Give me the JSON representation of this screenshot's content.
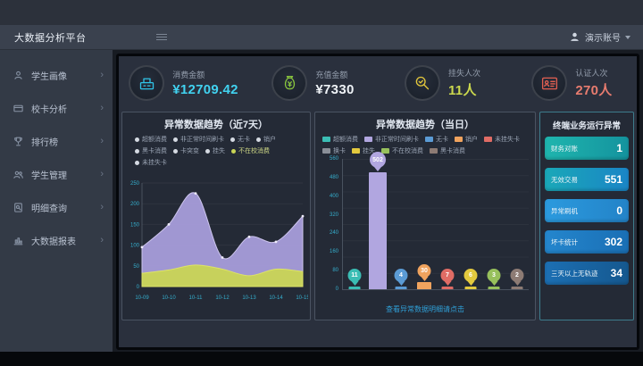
{
  "header": {
    "title": "大数据分析平台",
    "user_name": "演示账号"
  },
  "sidebar": {
    "items": [
      {
        "label": "学生画像",
        "icon": "student-icon"
      },
      {
        "label": "校卡分析",
        "icon": "card-icon"
      },
      {
        "label": "排行榜",
        "icon": "trophy-icon"
      },
      {
        "label": "学生管理",
        "icon": "users-icon"
      },
      {
        "label": "明细查询",
        "icon": "search-doc-icon"
      },
      {
        "label": "大数据报表",
        "icon": "report-icon"
      }
    ]
  },
  "kpis": [
    {
      "label": "消费金额",
      "value": "¥12709.42",
      "icon": "cash-register-icon",
      "icon_color": "#2fc3e6",
      "value_color": "#41d2f0"
    },
    {
      "label": "充值金额",
      "value": "¥7330",
      "icon": "money-bag-icon",
      "icon_color": "#8ac73e",
      "value_color": "#eef2f6"
    },
    {
      "label": "挂失人次",
      "value": "11人",
      "icon": "magnifier-hand-icon",
      "icon_color": "#e5c93b",
      "value_color": "#ccd94e"
    },
    {
      "label": "认证人次",
      "value": "270人",
      "icon": "id-card-icon",
      "icon_color": "#e25f51",
      "value_color": "#e87c6f"
    }
  ],
  "chart_data": [
    {
      "type": "area",
      "title": "异常数据趋势（近7天）",
      "x": [
        "10-09",
        "10-10",
        "10-11",
        "10-12",
        "10-13",
        "10-14",
        "10-15"
      ],
      "series": [
        {
          "name": "非正常时间刷卡",
          "color": "#a89ddb",
          "line": "#cdc5ee",
          "values": [
            95,
            150,
            225,
            70,
            120,
            108,
            170
          ]
        },
        {
          "name": "不在校消费",
          "color": "#c9d455",
          "line": "#dde368",
          "values": [
            32,
            40,
            52,
            42,
            26,
            42,
            36
          ]
        }
      ],
      "legend": [
        {
          "label": "超额消费",
          "dot": "#d5dae2"
        },
        {
          "label": "非正常时间刷卡",
          "dot": "#d5dae2"
        },
        {
          "label": "无卡",
          "dot": "#d5dae2"
        },
        {
          "label": "销户",
          "dot": "#d5dae2"
        },
        {
          "label": "黑卡消费",
          "dot": "#d5dae2"
        },
        {
          "label": "卡突变",
          "dot": "#d5dae2"
        },
        {
          "label": "挂失",
          "dot": "#d5dae2"
        },
        {
          "label": "不在校消费",
          "dot": "#c9d455"
        },
        {
          "label": "未挂失卡",
          "dot": "#d5dae2"
        }
      ],
      "ylim": [
        0,
        250
      ],
      "yticks": [
        0,
        50,
        100,
        150,
        200,
        250
      ],
      "xlabel": "",
      "ylabel": ""
    },
    {
      "type": "bar",
      "title": "异常数据趋势（当日）",
      "categories": [
        "超额消费",
        "非正常时间刷卡",
        "无卡",
        "销户",
        "未挂失卡",
        "换卡",
        "挂失",
        "不在校消费",
        "黑卡消费"
      ],
      "values": [
        11,
        502,
        4,
        30,
        7,
        0,
        6,
        3,
        2
      ],
      "colors": [
        "#3bbdb4",
        "#b1a6e0",
        "#5b9bd5",
        "#f0a35e",
        "#e06c65",
        "#8a8f98",
        "#e3c93e",
        "#97c05c",
        "#8d7b74"
      ],
      "ylim": [
        0,
        560
      ],
      "yticks": [
        0,
        80,
        160,
        240,
        320,
        400,
        480,
        560
      ],
      "footer_link": "查看异常数据明细请点击",
      "xlabel": "",
      "ylabel": ""
    }
  ],
  "right_panel": {
    "title": "终端业务运行异常",
    "stats": [
      {
        "label": "财务对账",
        "value": "1",
        "from": "#1fb5ae",
        "to": "#14939e"
      },
      {
        "label": "无效交易",
        "value": "551",
        "from": "#1aa8b8",
        "to": "#1a85c6"
      },
      {
        "label": "异常刷机",
        "value": "0",
        "from": "#2b9ade",
        "to": "#2383c8"
      },
      {
        "label": "坏卡统计",
        "value": "302",
        "from": "#2486cd",
        "to": "#1a6fb5"
      },
      {
        "label": "三天以上无轨迹",
        "value": "34",
        "from": "#1c6fb3",
        "to": "#15588f"
      }
    ]
  },
  "axis_color": "#35aecd"
}
